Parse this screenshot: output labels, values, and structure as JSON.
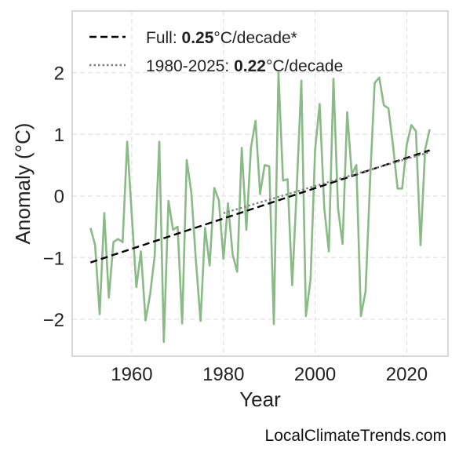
{
  "chart_data": {
    "type": "line",
    "xlabel": "Year",
    "ylabel": "Anomaly (°C)",
    "xlim": [
      1947,
      2029
    ],
    "ylim": [
      -2.6,
      3.0
    ],
    "xticks": [
      1960,
      1980,
      2000,
      2020
    ],
    "yticks": [
      -2,
      -1,
      0,
      1,
      2
    ],
    "grid": true,
    "legend_position": "top-left",
    "series": [
      {
        "color": "#8aba86",
        "x": [
          1951,
          1952,
          1953,
          1954,
          1955,
          1956,
          1957,
          1958,
          1959,
          1960,
          1961,
          1962,
          1963,
          1964,
          1965,
          1966,
          1967,
          1968,
          1969,
          1970,
          1971,
          1972,
          1973,
          1974,
          1975,
          1976,
          1977,
          1978,
          1979,
          1980,
          1981,
          1982,
          1983,
          1984,
          1985,
          1986,
          1987,
          1988,
          1989,
          1990,
          1991,
          1992,
          1993,
          1994,
          1995,
          1996,
          1997,
          1998,
          1999,
          2000,
          2001,
          2002,
          2003,
          2004,
          2005,
          2006,
          2007,
          2008,
          2009,
          2010,
          2011,
          2012,
          2013,
          2014,
          2015,
          2016,
          2017,
          2018,
          2019,
          2020,
          2021,
          2022,
          2023,
          2024,
          2025
        ],
        "y": [
          -0.52,
          -0.8,
          -1.92,
          -0.28,
          -1.65,
          -0.75,
          -0.7,
          -0.75,
          0.88,
          -0.3,
          -1.48,
          -0.9,
          -2.02,
          -1.6,
          -0.98,
          0.88,
          -2.37,
          -0.08,
          -0.55,
          -0.5,
          -2.07,
          0.58,
          0.05,
          -1.05,
          -2.03,
          -0.52,
          -1.13,
          0.13,
          -0.07,
          -1.02,
          -0.12,
          -0.95,
          -1.23,
          0.78,
          -0.55,
          0.78,
          1.22,
          0.03,
          0.5,
          0.48,
          -2.08,
          2.0,
          0.25,
          0.27,
          -1.45,
          0.12,
          1.87,
          -1.95,
          -1.35,
          0.75,
          1.49,
          -0.2,
          -0.9,
          1.9,
          -0.2,
          -0.78,
          1.36,
          0.35,
          0.5,
          -1.95,
          -1.55,
          0.25,
          1.83,
          1.92,
          1.47,
          1.42,
          0.82,
          0.12,
          0.12,
          0.83,
          1.15,
          1.05,
          -0.8,
          0.75,
          1.08
        ]
      }
    ],
    "trend_lines": [
      {
        "label_prefix": "Full: ",
        "label_value": "0.25",
        "label_suffix": "°C/decade*",
        "style": "dashed",
        "color": "#000000",
        "x": [
          1951,
          2025
        ],
        "y": [
          -1.08,
          0.74
        ]
      },
      {
        "label_prefix": "1980-2025: ",
        "label_value": "0.22",
        "label_suffix": "°C/decade",
        "style": "dotted",
        "color": "#808080",
        "x": [
          1980,
          2025
        ],
        "y": [
          -0.28,
          0.71
        ]
      }
    ]
  },
  "watermark": "LocalClimateTrends.com"
}
